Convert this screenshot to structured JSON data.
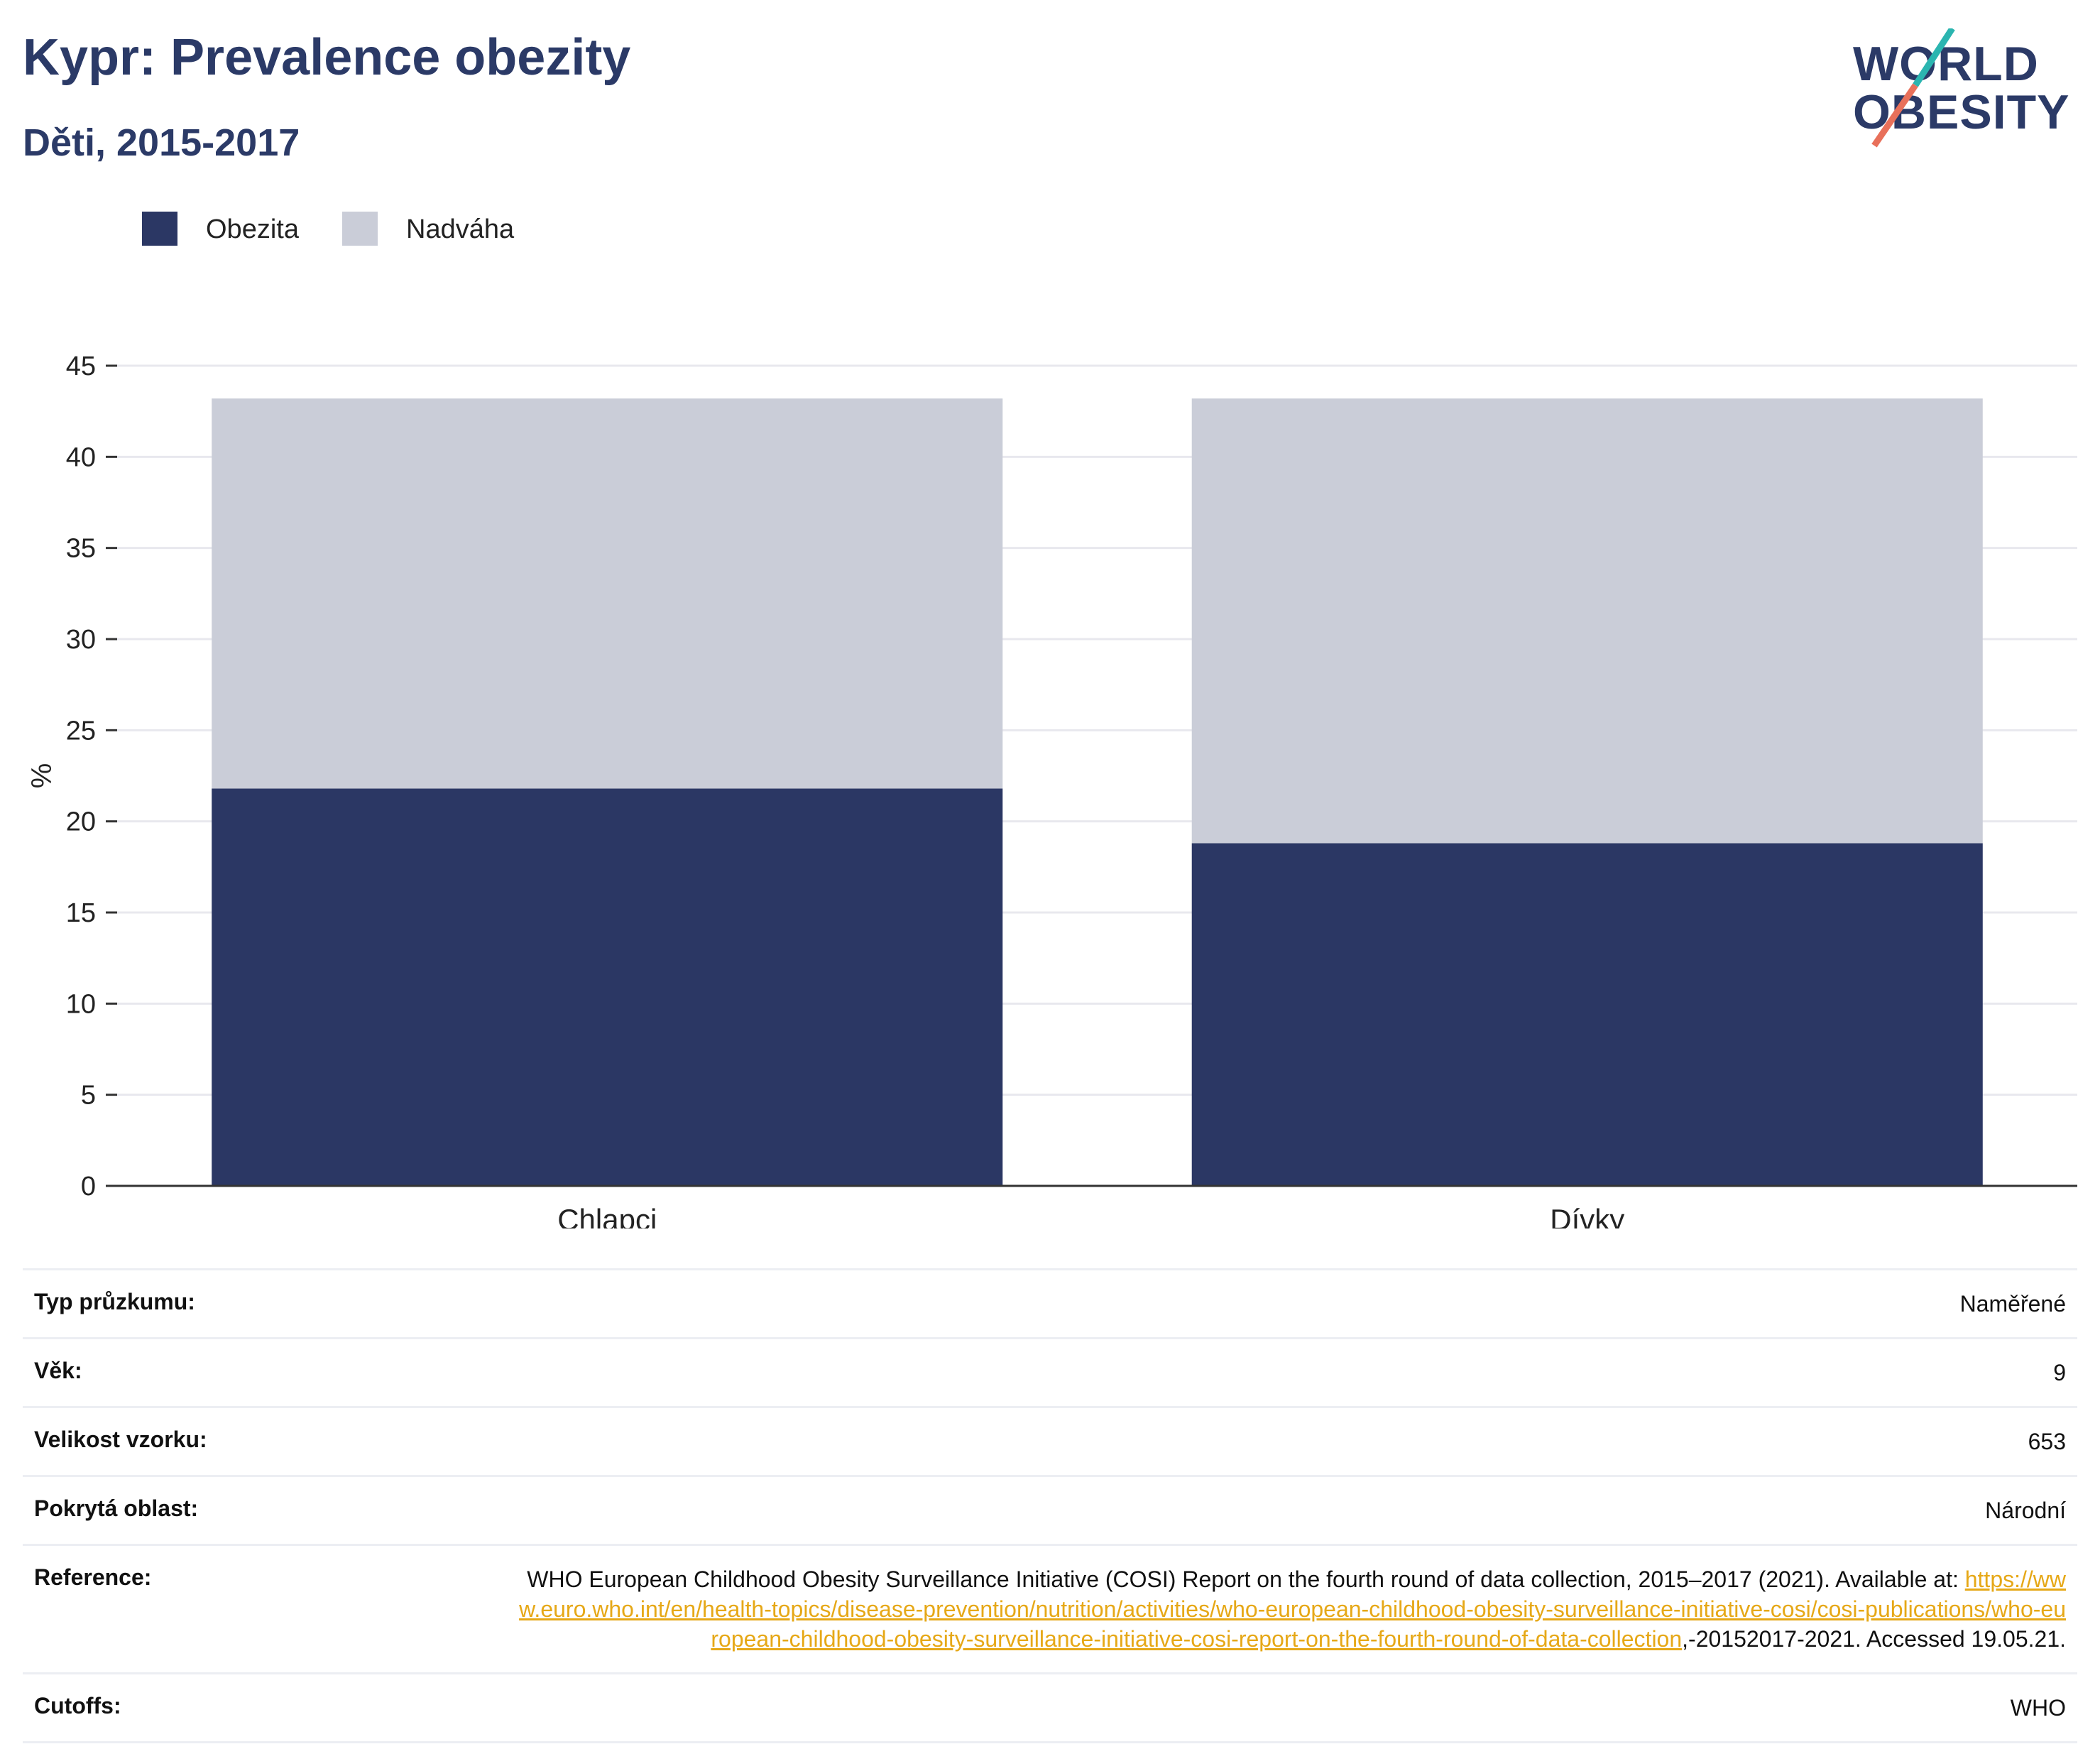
{
  "header": {
    "title": "Kypr: Prevalence obezity",
    "subtitle": "Děti, 2015-2017"
  },
  "logo": {
    "line1": "WORLD",
    "line2": "OBESITY",
    "colors": {
      "text": "#2b3a67",
      "slash_top": "#2bb5b0",
      "slash_bottom": "#e8705a"
    }
  },
  "colors": {
    "obezita": "#2b3764",
    "nadvaha": "#cacdd8",
    "grid": "#e8e8ee",
    "axis": "#333333"
  },
  "legend": {
    "items": [
      {
        "label": "Obezita",
        "color": "#2b3764"
      },
      {
        "label": "Nadváha",
        "color": "#cacdd8"
      }
    ],
    "placement": "top-left"
  },
  "chart_data": {
    "type": "bar",
    "stacked": true,
    "title": "Kypr: Prevalence obezity",
    "subtitle": "Děti, 2015-2017",
    "categories": [
      "Chlapci",
      "Dívky"
    ],
    "series": [
      {
        "name": "Obezita",
        "values": [
          21.8,
          18.8
        ],
        "color": "#2b3764"
      },
      {
        "name": "Nadváha",
        "values": [
          21.4,
          24.4
        ],
        "color": "#cacdd8"
      }
    ],
    "xlabel": "",
    "ylabel": "%",
    "ylim": [
      0,
      45
    ],
    "yticks": [
      0,
      5,
      10,
      15,
      20,
      25,
      30,
      35,
      40,
      45
    ],
    "grid": true
  },
  "info": {
    "survey_type": {
      "label": "Typ průzkumu:",
      "value": "Naměřené"
    },
    "age": {
      "label": "Věk:",
      "value": "9"
    },
    "sample_size": {
      "label": "Velikost vzorku:",
      "value": "653"
    },
    "area": {
      "label": "Pokrytá oblast:",
      "value": "Národní"
    },
    "reference": {
      "label": "Reference:",
      "text_before": "WHO European Childhood Obesity Surveillance Initiative (COSI) Report on the fourth round of data collection, 2015–2017 (2021). Available at: ",
      "link": "https://www.euro.who.int/en/health-topics/disease-prevention/nutrition/activities/who-european-childhood-obesity-surveillance-initiative-cosi/cosi-publications/who-european-childhood-obesity-surveillance-initiative-cosi-report-on-the-fourth-round-of-data-collection",
      "text_after": ",-20152017-2021. Accessed 19.05.21."
    },
    "cutoffs": {
      "label": "Cutoffs:",
      "value": "WHO"
    }
  }
}
